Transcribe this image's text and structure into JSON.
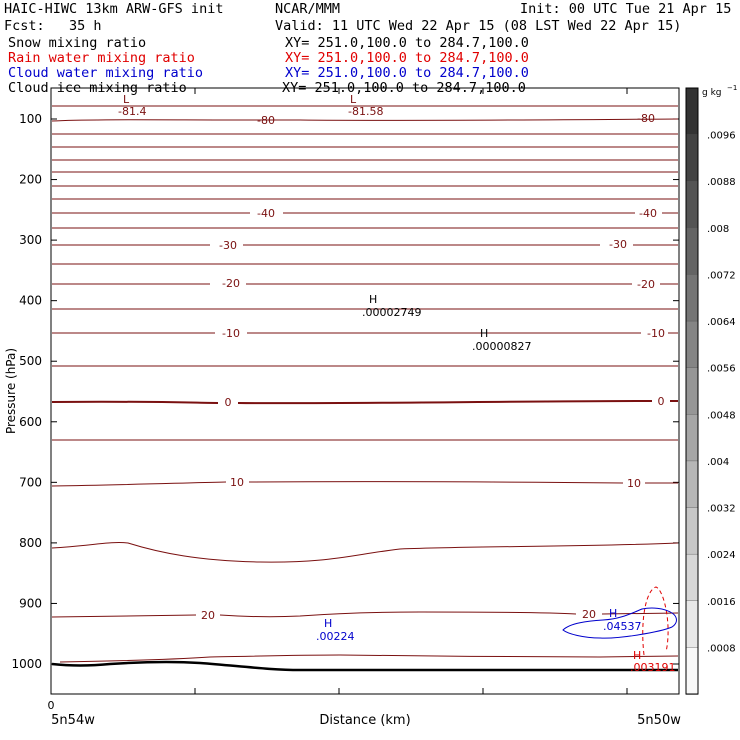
{
  "header": {
    "model": "HAIC-HIWC 13km ARW-GFS init",
    "org": "NCAR/MMM",
    "init": "Init: 00 UTC Tue 21 Apr 15",
    "fcst": "Fcst:   35 h",
    "valid": "Valid: 11 UTC Wed 22 Apr 15 (08 LST Wed 22 Apr 15)"
  },
  "fields": [
    {
      "name": "Snow mixing ratio",
      "xy": "XY= 251.0,100.0 to 284.7,100.0",
      "color": "#000000"
    },
    {
      "name": "Rain water mixing ratio",
      "xy": "XY= 251.0,100.0 to 284.7,100.0",
      "color": "#e00000"
    },
    {
      "name": "Cloud water mixing ratio",
      "xy": "XY= 251.0,100.0 to 284.7,100.0",
      "color": "#0000cc"
    },
    {
      "name": "Cloud ice mixing ratio",
      "xy": "XY= 251.0,100.0 to 284.7,100.0",
      "color": "#000000"
    }
  ],
  "chart_data": {
    "type": "contour cross-section",
    "ylabel": "Pressure (hPa)",
    "xlabel": "Distance (km)",
    "y_ticks": [
      100,
      200,
      300,
      400,
      500,
      600,
      700,
      800,
      900,
      1000
    ],
    "ylim": [
      1050,
      50
    ],
    "x_ticks": [
      0
    ],
    "x_endpoint_labels": [
      "5n54w",
      "5n50w"
    ],
    "temperature_contour_color": "#7a1010",
    "temperature_contours": [
      {
        "value": "-80",
        "pressure": 120
      },
      {
        "value": "-40",
        "pressure": 255
      },
      {
        "value": "-30",
        "pressure": 305
      },
      {
        "value": "-20",
        "pressure": 355
      },
      {
        "value": "-10",
        "pressure": 450
      },
      {
        "value": "0",
        "pressure": 560
      },
      {
        "value": "10",
        "pressure": 700
      },
      {
        "value": "20",
        "pressure": 925
      }
    ],
    "extrema": [
      {
        "kind": "L",
        "value": "-81.4",
        "color": "#7a1010"
      },
      {
        "kind": "L",
        "value": "-81.58",
        "color": "#7a1010"
      },
      {
        "kind": "H",
        "value": ".00002749",
        "color": "#000000"
      },
      {
        "kind": "H",
        "value": ".00000827",
        "color": "#000000"
      },
      {
        "kind": "H",
        "value": ".00224",
        "color": "#0000cc"
      },
      {
        "kind": "H",
        "value": ".04537",
        "color": "#0000cc"
      },
      {
        "kind": "H",
        "value": ".003191",
        "color": "#e00000"
      }
    ],
    "colorbar": {
      "unit": "g kg",
      "unit_exp": "−1",
      "labels": [
        ".0096",
        ".0088",
        ".008",
        ".0072",
        ".0064",
        ".0056",
        ".0048",
        ".004",
        ".0032",
        ".0024",
        ".0016",
        ".0008"
      ],
      "top_color": "#333333",
      "bottom_color": "#f8f8f8"
    }
  }
}
